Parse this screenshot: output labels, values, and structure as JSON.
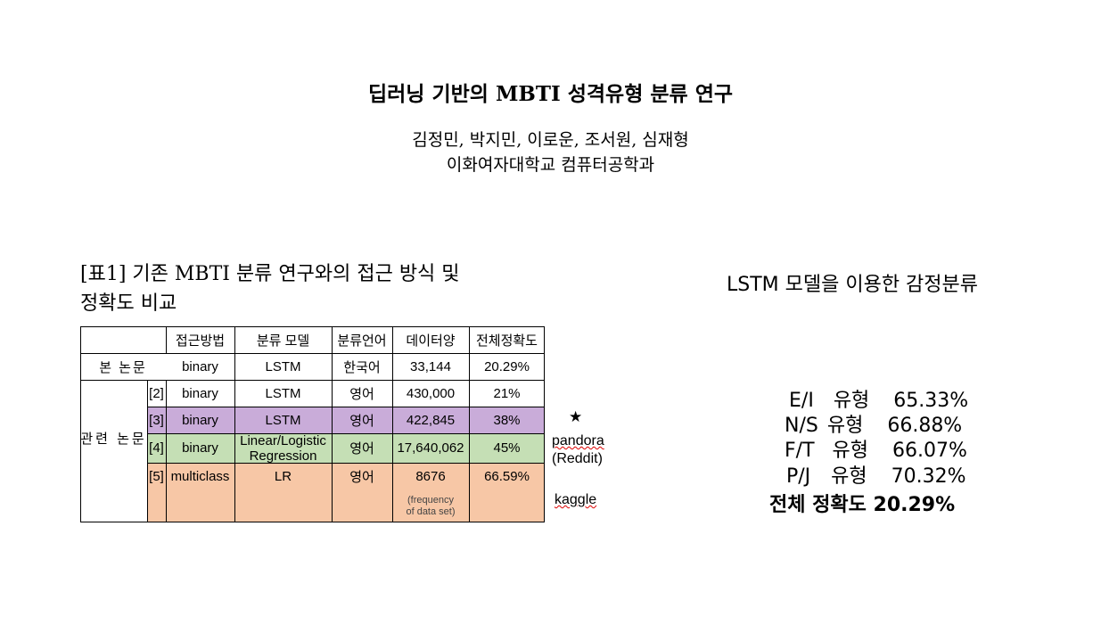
{
  "title": "딥러닝 기반의 MBTI 성격유형 분류 연구",
  "authors": "김정민, 박지민, 이로운, 조서원, 심재형",
  "affiliation": "이화여자대학교 컴퓨터공학과",
  "table_caption_line1": "[표1] 기존 MBTI 분류 연구와의 접근 방식 및",
  "table_caption_line2": "정확도 비교",
  "table": {
    "headers": [
      "접근방법",
      "분류 모델",
      "분류언어",
      "데이터양",
      "전체정확도"
    ],
    "this_paper_label": "본 논문",
    "related_label": "관련 논문",
    "rows": [
      {
        "ref": "",
        "method": "binary",
        "model": "LSTM",
        "lang": "한국어",
        "data": "33,144",
        "acc": "20.29%"
      },
      {
        "ref": "[2]",
        "method": "binary",
        "model": "LSTM",
        "lang": "영어",
        "data": "430,000",
        "acc": "21%"
      },
      {
        "ref": "[3]",
        "method": "binary",
        "model": "LSTM",
        "lang": "영어",
        "data": "422,845",
        "acc": "38%"
      },
      {
        "ref": "[4]",
        "method": "binary",
        "model_line1": "Linear/Logistic",
        "model_line2": "Regression",
        "lang": "영어",
        "data": "17,640,062",
        "acc": "45%"
      },
      {
        "ref": "[5]",
        "method": "multiclass",
        "model": "LR",
        "lang": "영어",
        "data": "8676",
        "data_note_line1": "(frequency",
        "data_note_line2": "of data set)",
        "acc": "66.59%"
      }
    ],
    "row_colors": {
      "row3": "#c9acd9",
      "row4": "#c5dfb5",
      "row5": "#f7c7a6"
    }
  },
  "side_notes": {
    "star": "★",
    "pandora": "pandora",
    "reddit": "(Reddit)",
    "kaggle": "kaggle"
  },
  "right_panel": {
    "title": "LSTM 모델을 이용한 감정분류",
    "stats": [
      {
        "dim": "E/I",
        "label": "유형",
        "value": "65.33%"
      },
      {
        "dim": "N/S",
        "label": "유형",
        "value": "66.88%"
      },
      {
        "dim": "F/T",
        "label": "유형",
        "value": "66.07%"
      },
      {
        "dim": "P/J",
        "label": "유형",
        "value": "70.32%"
      }
    ],
    "overall": "전체 정확도 20.29%"
  }
}
